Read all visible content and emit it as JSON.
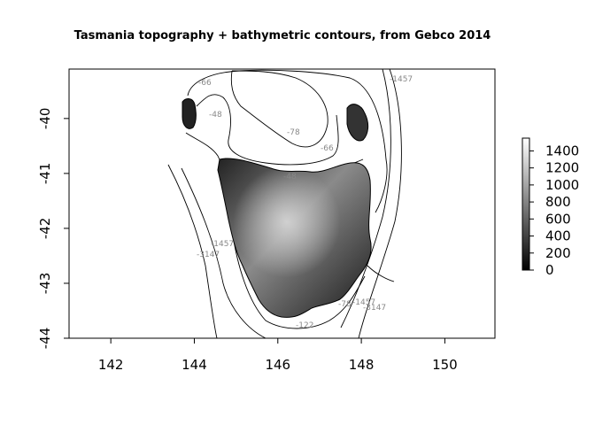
{
  "title": "Tasmania topography + bathymetric contours, from Gebco 2014",
  "x_axis": {
    "range": [
      141,
      151.2
    ],
    "ticks": [
      "142",
      "144",
      "146",
      "148",
      "150"
    ]
  },
  "y_axis": {
    "range": [
      -44,
      -39.1
    ],
    "ticks": [
      "-40",
      "-41",
      "-42",
      "-43",
      "-44"
    ]
  },
  "legend": {
    "labels": [
      "1400",
      "1200",
      "1000",
      "800",
      "600",
      "400",
      "200",
      "0"
    ],
    "range": [
      0,
      1550
    ],
    "gradient": [
      "#000000",
      "#ffffff"
    ]
  },
  "contour_labels": [
    "-66",
    "-48",
    "-78",
    "-66",
    "-48",
    "-1457",
    "-1457",
    "-3147",
    "-3147",
    "-1457",
    "-122",
    "-78"
  ]
}
